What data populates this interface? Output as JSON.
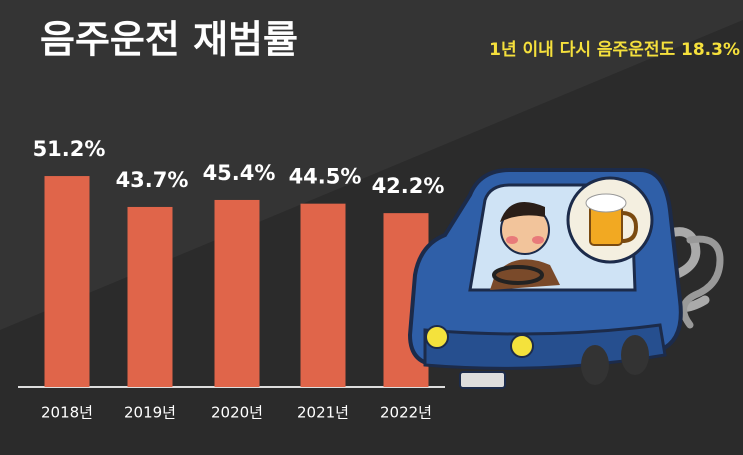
{
  "chart_data": {
    "type": "bar",
    "title": "음주운전 재범률",
    "subtitle": "1년 이내 다시 음주운전도 18.3%",
    "categories": [
      "2018년",
      "2019년",
      "2020년",
      "2021년",
      "2022년"
    ],
    "values": [
      51.2,
      43.7,
      45.4,
      44.5,
      42.2
    ],
    "value_labels": [
      "51.2%",
      "43.7%",
      "45.4%",
      "44.5%",
      "42.2%"
    ],
    "color": "#e0654a"
  }
}
